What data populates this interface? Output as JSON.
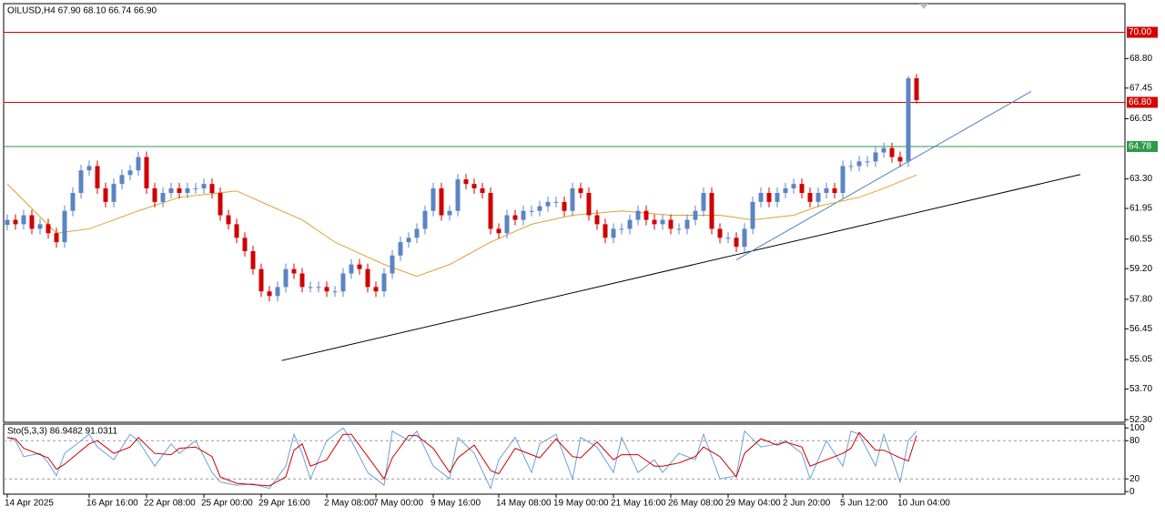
{
  "chart_data": {
    "type": "candlestick",
    "header": "OILUSD,H4  67.90 68.10 66.74 66.90",
    "categories": [
      "14 Apr 2025",
      null,
      null,
      null,
      null,
      null,
      null,
      null,
      null,
      null,
      "16 Apr 16:00",
      null,
      null,
      null,
      null,
      null,
      null,
      "22 Apr 08:00",
      null,
      null,
      null,
      null,
      null,
      null,
      "25 Apr 00:00",
      null,
      null,
      null,
      null,
      null,
      null,
      "29 Apr 16:00",
      null,
      null,
      null,
      null,
      null,
      null,
      null,
      "2 May 08:00",
      null,
      null,
      null,
      null,
      null,
      "7 May 00:00",
      null,
      null,
      null,
      null,
      null,
      null,
      "9 May 16:00",
      null,
      null,
      null,
      null,
      null,
      null,
      null,
      "14 May 08:00",
      null,
      null,
      null,
      null,
      null,
      null,
      "19 May 00:00",
      null,
      null,
      null,
      null,
      null,
      null,
      "21 May 16:00",
      null,
      null,
      null,
      null,
      null,
      null,
      "26 May 08:00",
      null,
      null,
      null,
      null,
      null,
      null,
      "29 May 04:00",
      null,
      null,
      null,
      null,
      null,
      null,
      "2 Jun 20:00",
      null,
      null,
      null,
      null,
      null,
      null,
      "5 Jun 12:00",
      null,
      null,
      null,
      null,
      null,
      null,
      "10 Jun 04:00",
      null,
      null
    ],
    "open": [
      61.2,
      61.43,
      61.23,
      61.64,
      61.02,
      61.23,
      60.82,
      60.41,
      61.84,
      62.66,
      63.69,
      63.89,
      62.87,
      62.25,
      63.07,
      63.48,
      63.69,
      64.3,
      62.87,
      62.25,
      62.66,
      62.87,
      62.66,
      62.87,
      62.87,
      63.07,
      62.66,
      61.64,
      61.23,
      60.61,
      60.0,
      59.18,
      58.16,
      57.95,
      58.36,
      59.18,
      58.98,
      58.36,
      58.36,
      58.36,
      58.16,
      58.16,
      58.98,
      59.39,
      59.18,
      58.36,
      58.16,
      58.98,
      59.8,
      60.41,
      60.61,
      61.02,
      61.84,
      62.87,
      61.64,
      61.84,
      63.28,
      63.07,
      62.87,
      62.66,
      61.02,
      60.82,
      61.64,
      61.43,
      61.84,
      61.84,
      62.05,
      62.25,
      62.25,
      61.84,
      62.87,
      62.66,
      61.64,
      61.23,
      60.61,
      61.02,
      61.02,
      61.43,
      61.84,
      61.43,
      61.23,
      61.43,
      61.02,
      61.02,
      61.43,
      61.84,
      62.66,
      61.02,
      60.61,
      60.61,
      60.2,
      61.02,
      62.25,
      62.66,
      62.25,
      62.66,
      62.87,
      63.07,
      62.66,
      62.25,
      62.66,
      62.87,
      62.66,
      63.89,
      63.89,
      64.1,
      64.1,
      64.51,
      64.71,
      64.3,
      64.1,
      67.9
    ],
    "high": [
      61.68,
      61.68,
      61.89,
      61.89,
      61.48,
      61.48,
      61.07,
      62.09,
      62.91,
      63.94,
      64.14,
      64.14,
      63.12,
      63.32,
      63.73,
      63.94,
      64.55,
      64.55,
      63.12,
      62.91,
      63.12,
      63.12,
      63.12,
      63.12,
      63.32,
      63.32,
      62.91,
      61.89,
      61.48,
      60.86,
      60.25,
      59.43,
      58.41,
      58.61,
      59.43,
      59.43,
      59.23,
      58.61,
      58.61,
      58.61,
      58.41,
      59.23,
      59.64,
      59.64,
      59.43,
      58.61,
      59.23,
      60.05,
      60.66,
      60.86,
      61.27,
      62.09,
      63.12,
      63.12,
      62.09,
      63.53,
      63.53,
      63.32,
      63.12,
      62.91,
      61.27,
      61.89,
      61.89,
      62.09,
      62.09,
      62.3,
      62.5,
      62.5,
      62.5,
      63.12,
      63.12,
      62.91,
      61.89,
      61.48,
      61.27,
      61.27,
      61.68,
      62.09,
      62.09,
      61.68,
      61.68,
      61.68,
      61.27,
      61.68,
      62.09,
      62.91,
      62.91,
      61.27,
      60.86,
      60.86,
      61.27,
      62.5,
      62.91,
      62.91,
      62.91,
      63.12,
      63.32,
      63.32,
      62.91,
      62.91,
      63.12,
      63.12,
      64.14,
      64.14,
      64.35,
      64.35,
      64.76,
      64.96,
      64.96,
      64.55,
      68.0,
      68.1
    ],
    "low": [
      60.95,
      60.98,
      60.98,
      60.77,
      60.77,
      60.57,
      60.16,
      60.16,
      61.59,
      62.41,
      63.44,
      62.62,
      62.0,
      62.0,
      62.82,
      63.23,
      63.44,
      62.62,
      62.0,
      62.0,
      62.41,
      62.41,
      62.41,
      62.62,
      62.62,
      62.41,
      61.39,
      60.98,
      60.36,
      59.75,
      58.93,
      57.91,
      57.7,
      57.7,
      58.11,
      58.73,
      58.11,
      58.11,
      58.11,
      57.91,
      57.91,
      57.91,
      58.73,
      58.93,
      58.11,
      57.91,
      57.91,
      58.73,
      59.55,
      60.16,
      60.36,
      60.77,
      61.59,
      61.39,
      61.39,
      61.59,
      62.82,
      62.62,
      62.41,
      60.77,
      60.57,
      60.57,
      61.18,
      61.18,
      61.59,
      61.59,
      61.8,
      62.0,
      61.59,
      61.59,
      62.41,
      61.39,
      60.98,
      60.36,
      60.36,
      60.77,
      60.77,
      61.18,
      61.18,
      60.98,
      60.98,
      60.77,
      60.77,
      60.77,
      61.18,
      61.59,
      60.77,
      60.36,
      60.36,
      59.95,
      59.95,
      60.77,
      62.0,
      62.0,
      62.0,
      62.41,
      62.62,
      62.41,
      62.0,
      62.0,
      62.41,
      62.41,
      62.41,
      63.64,
      63.64,
      63.85,
      63.85,
      64.26,
      64.05,
      63.85,
      63.85,
      66.74
    ],
    "close": [
      61.43,
      61.23,
      61.64,
      61.02,
      61.23,
      60.82,
      60.41,
      61.84,
      62.66,
      63.69,
      63.89,
      62.87,
      62.25,
      63.07,
      63.48,
      63.69,
      64.3,
      62.87,
      62.25,
      62.66,
      62.87,
      62.66,
      62.87,
      62.87,
      63.07,
      62.66,
      61.64,
      61.23,
      60.61,
      60.0,
      59.18,
      58.16,
      57.95,
      58.36,
      59.18,
      58.98,
      58.36,
      58.36,
      58.36,
      58.16,
      58.16,
      58.98,
      59.39,
      59.18,
      58.36,
      58.16,
      58.98,
      59.8,
      60.41,
      60.61,
      61.02,
      61.84,
      62.87,
      61.64,
      61.84,
      63.28,
      63.07,
      62.87,
      62.66,
      61.02,
      60.82,
      61.64,
      61.43,
      61.84,
      61.84,
      62.05,
      62.25,
      62.25,
      61.84,
      62.87,
      62.66,
      61.64,
      61.23,
      60.61,
      61.02,
      61.02,
      61.43,
      61.84,
      61.43,
      61.23,
      61.43,
      61.02,
      61.02,
      61.43,
      61.84,
      62.66,
      61.02,
      60.61,
      60.61,
      60.2,
      61.02,
      62.25,
      62.66,
      62.25,
      62.66,
      62.87,
      63.07,
      62.66,
      62.25,
      62.66,
      62.87,
      62.66,
      63.89,
      63.89,
      64.1,
      64.1,
      64.51,
      64.71,
      64.3,
      64.1,
      67.9,
      66.9
    ],
    "up_color": "#5b84c4",
    "down_color": "#d00000",
    "ylim": [
      52.18,
      71.31
    ],
    "yticks": [
      {
        "value": 52.3,
        "label": "52.30"
      },
      {
        "value": 53.7,
        "label": "53.70"
      },
      55.05,
      56.45,
      {
        "value": 57.8,
        "label": "57.80"
      },
      {
        "value": 59.2,
        "label": "59.20"
      },
      60.55,
      61.95,
      {
        "value": 63.3,
        "label": "63.30"
      },
      66.05,
      67.45,
      {
        "value": 68.8,
        "label": "68.80"
      }
    ],
    "levels": [
      {
        "value": 70,
        "label": "70.00",
        "color": "#d40000"
      },
      {
        "value": 66.8,
        "label": "66.80",
        "color": "#d40000"
      },
      {
        "value": 64.78,
        "label": "64.78",
        "color": "#2e9a4a"
      }
    ],
    "moving_average": {
      "color": "#e0a030",
      "x": [
        0,
        6,
        10,
        16,
        21,
        28,
        31,
        36,
        40,
        46,
        50,
        54,
        59,
        64,
        69,
        75,
        81,
        87,
        91,
        96,
        99,
        104,
        107,
        111
      ],
      "values": [
        63.07,
        60.82,
        61.02,
        61.84,
        62.46,
        62.75,
        62.25,
        61.43,
        60.41,
        59.39,
        58.85,
        59.39,
        60.41,
        61.23,
        61.64,
        61.84,
        61.64,
        61.64,
        61.43,
        61.64,
        62.05,
        62.46,
        62.87,
        63.48
      ]
    },
    "trendlines": [
      {
        "color": "#000000",
        "x": [
          33.5,
          131
        ],
        "y": [
          55.0,
          63.5
        ]
      },
      {
        "color": "#4a7fc0",
        "x": [
          89,
          125
        ],
        "y": [
          59.6,
          67.3
        ]
      }
    ],
    "stochastic": {
      "title": "Sto(5,3,3) 86.9482 91.0311",
      "ylim": [
        -4,
        106
      ],
      "yticks": [
        0,
        20,
        80,
        100
      ],
      "dashed_levels": [
        20,
        80
      ],
      "series": [
        {
          "color": "#6aa0d8",
          "x": [
            0,
            1,
            2,
            4,
            5,
            6,
            7,
            10,
            11,
            13,
            15,
            16,
            18,
            20,
            21,
            23,
            25,
            26,
            28,
            30,
            32,
            34,
            35,
            36,
            37,
            39,
            41,
            42,
            44,
            46,
            47,
            49,
            50,
            52,
            54,
            55,
            57,
            59,
            60,
            62,
            64,
            65,
            67,
            69,
            70,
            72,
            74,
            75,
            77,
            79,
            80,
            82,
            84,
            85,
            87,
            89,
            90,
            92,
            94,
            95,
            97,
            98,
            100,
            102,
            103,
            104,
            106,
            107,
            109,
            110,
            111
          ],
          "values": [
            85,
            80,
            55,
            60,
            45,
            25,
            60,
            90,
            70,
            50,
            90,
            80,
            40,
            75,
            60,
            80,
            30,
            15,
            10,
            12,
            5,
            40,
            90,
            60,
            20,
            80,
            100,
            80,
            30,
            10,
            95,
            80,
            95,
            40,
            20,
            85,
            60,
            5,
            50,
            85,
            30,
            75,
            90,
            20,
            85,
            70,
            30,
            85,
            30,
            50,
            30,
            60,
            50,
            90,
            20,
            25,
            95,
            70,
            75,
            80,
            60,
            20,
            80,
            40,
            95,
            90,
            40,
            90,
            15,
            80,
            95
          ]
        },
        {
          "color": "#d00000",
          "x": [
            0,
            1,
            2,
            4,
            5,
            6,
            7,
            10,
            11,
            13,
            15,
            16,
            18,
            20,
            21,
            23,
            25,
            26,
            28,
            30,
            32,
            34,
            35,
            36,
            37,
            39,
            41,
            42,
            44,
            46,
            47,
            49,
            50,
            52,
            54,
            55,
            57,
            59,
            60,
            62,
            64,
            65,
            67,
            69,
            70,
            72,
            74,
            75,
            77,
            79,
            80,
            82,
            84,
            85,
            87,
            89,
            90,
            92,
            94,
            95,
            97,
            98,
            100,
            102,
            103,
            104,
            106,
            107,
            109,
            110,
            111
          ],
          "values": [
            85,
            83,
            68,
            58,
            53,
            35,
            43,
            75,
            80,
            60,
            70,
            85,
            60,
            58,
            68,
            70,
            55,
            23,
            13,
            11,
            9,
            23,
            65,
            75,
            40,
            50,
            90,
            90,
            55,
            20,
            53,
            88,
            88,
            68,
            30,
            53,
            73,
            33,
            28,
            68,
            58,
            53,
            83,
            55,
            53,
            78,
            50,
            58,
            58,
            40,
            40,
            45,
            55,
            70,
            55,
            23,
            60,
            83,
            73,
            78,
            70,
            40,
            50,
            60,
            68,
            93,
            65,
            65,
            53,
            48,
            88
          ]
        }
      ]
    }
  }
}
